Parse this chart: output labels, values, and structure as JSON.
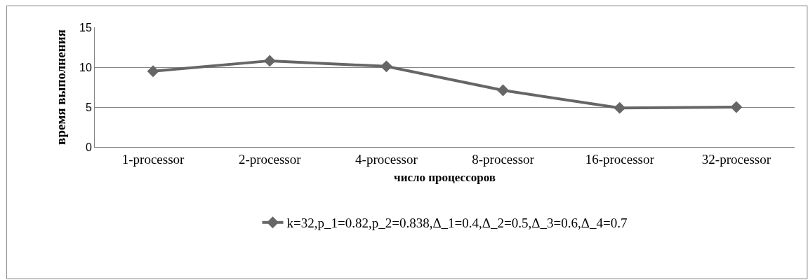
{
  "chart_data": {
    "type": "line",
    "xlabel": "число процессоров",
    "ylabel": "время выполнения",
    "categories": [
      "1-processor",
      "2-processor",
      "4-processor",
      "8-processor",
      "16-processor",
      "32-processor"
    ],
    "series": [
      {
        "name": "k=32,p_1=0.82,p_2=0.838,Δ_1=0.4,Δ_2=0.5,Δ_3=0.6,Δ_4=0.7",
        "color": "#666666",
        "values": [
          9.5,
          10.8,
          10.1,
          7.1,
          4.9,
          5.0
        ]
      }
    ],
    "ylim": [
      0,
      15
    ],
    "yticks": [
      0,
      5,
      10,
      15
    ],
    "grid": "y",
    "legend": "bottom",
    "marker": "diamond",
    "line_style": "solid"
  }
}
